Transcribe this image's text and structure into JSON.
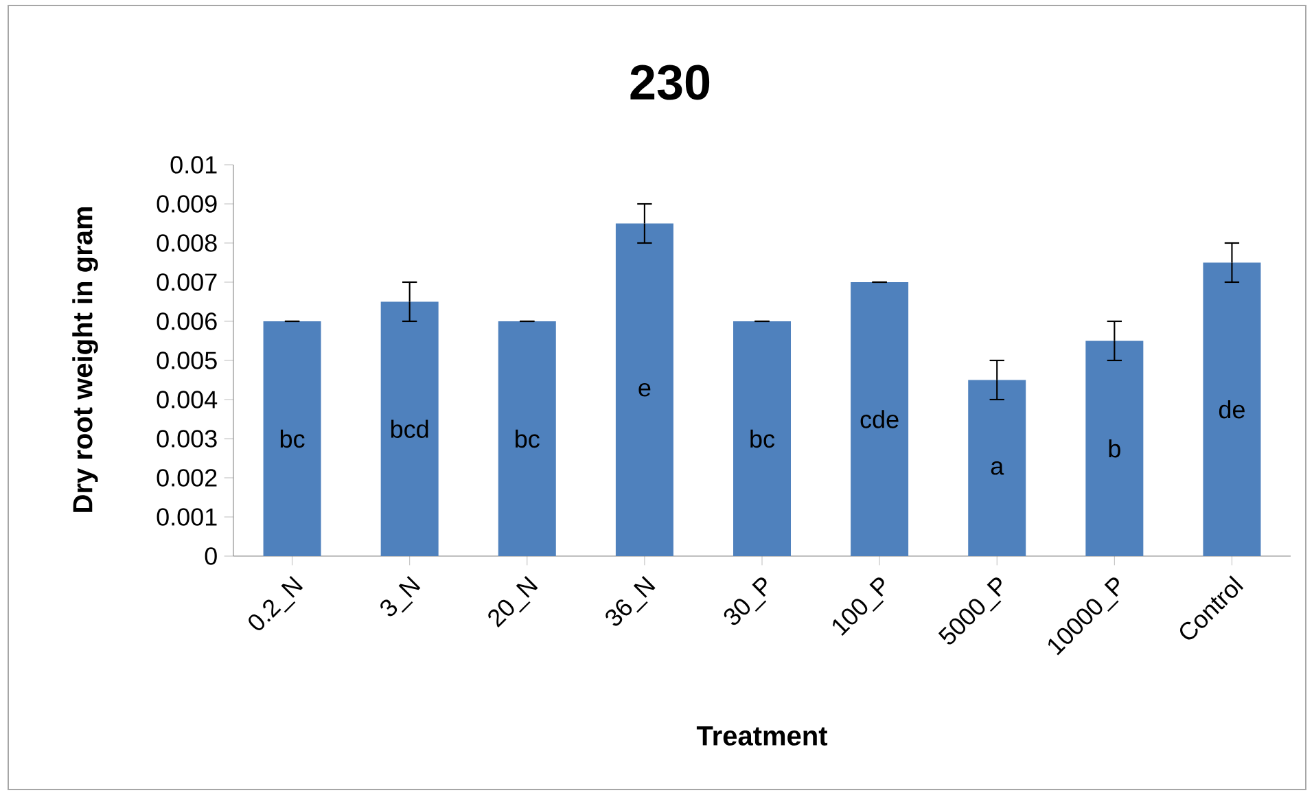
{
  "chart_data": {
    "type": "bar",
    "title": "230",
    "xlabel": "Treatment",
    "ylabel": "Dry root weight in gram",
    "categories": [
      "0.2_N",
      "3_N",
      "20_N",
      "36_N",
      "30_P",
      "100_P",
      "5000_P",
      "10000_P",
      "Control"
    ],
    "values": [
      0.006,
      0.0065,
      0.006,
      0.0085,
      0.006,
      0.007,
      0.0045,
      0.0055,
      0.0075
    ],
    "errors": [
      0,
      0.0005,
      0,
      0.0005,
      0,
      0,
      0.0005,
      0.0005,
      0.0005
    ],
    "color": "#4f81bd",
    "ylim": [
      0,
      0.01
    ],
    "yticks": [
      0,
      0.001,
      0.002,
      0.003,
      0.004,
      0.005,
      0.006,
      0.007,
      0.008,
      0.009,
      0.01
    ],
    "annotations": [
      "bc",
      "bcd",
      "bc",
      "e",
      "bc",
      "cde",
      "a",
      "b",
      "de"
    ]
  }
}
